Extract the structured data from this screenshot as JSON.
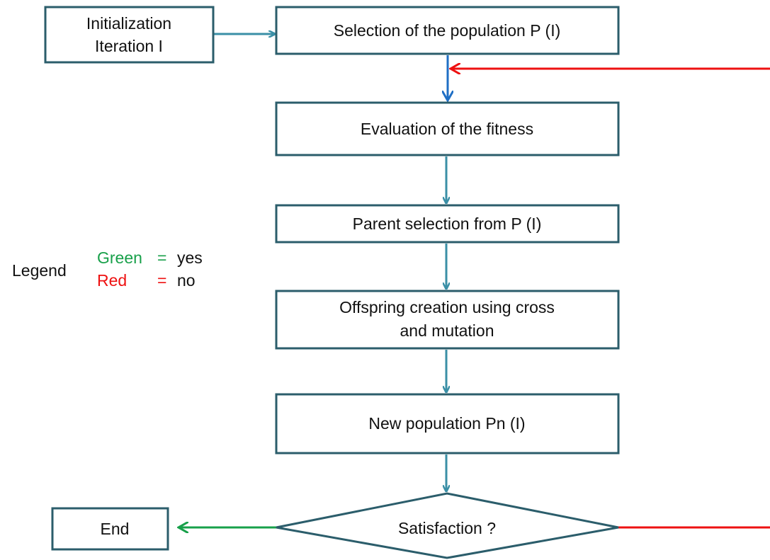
{
  "nodes": [
    {
      "lines": [
        "Initialization",
        "Iteration I"
      ]
    },
    {
      "lines": [
        "Selection of  the population P (I)"
      ]
    },
    {
      "lines": [
        "Evaluation of the fitness"
      ]
    },
    {
      "lines": [
        "Parent selection from P (I)"
      ]
    },
    {
      "lines": [
        "Offspring creation using cross",
        "and mutation"
      ]
    },
    {
      "lines": [
        "New population Pn (I)"
      ]
    },
    {
      "lines": [
        "Satisfaction  ?"
      ]
    },
    {
      "lines": [
        "End"
      ]
    }
  ],
  "legend": {
    "title": "Legend",
    "entries": [
      {
        "label": "Green",
        "sign": "=",
        "meaning": "yes"
      },
      {
        "label": "Red",
        "sign": "=",
        "meaning": "no"
      }
    ]
  }
}
